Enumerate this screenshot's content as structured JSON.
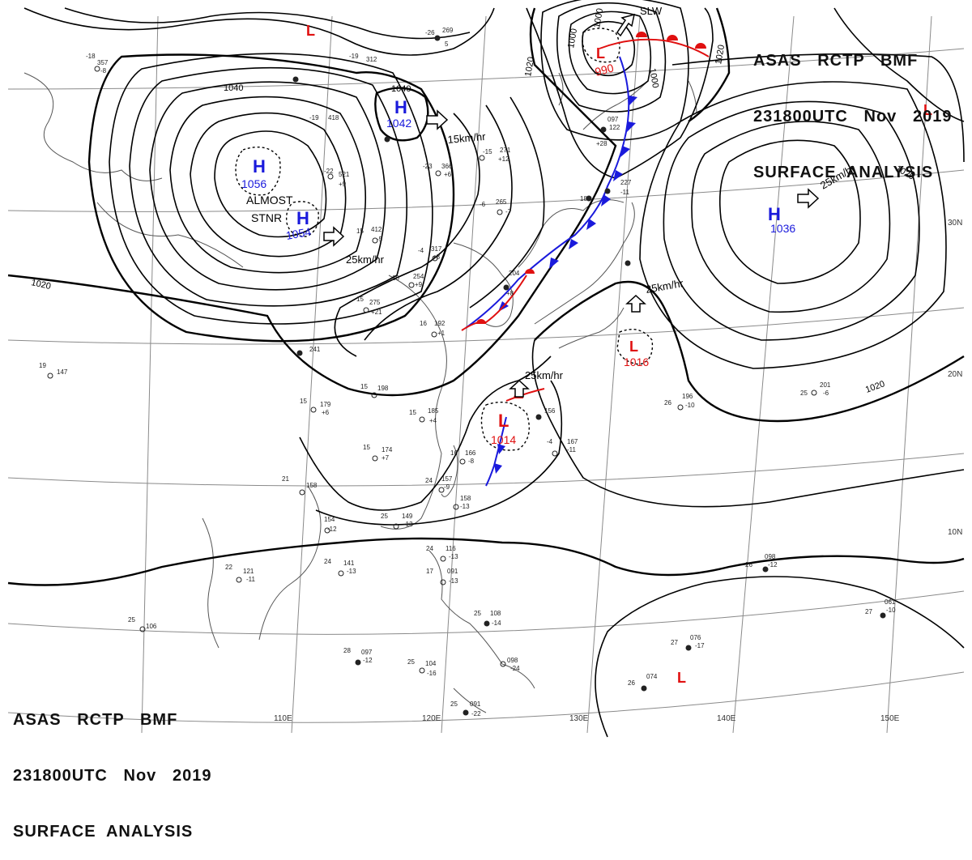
{
  "header_top": [
    "ASAS   RCTP   BMF",
    "231800UTC   Nov   2019",
    "SURFACE  ANALYSIS"
  ],
  "header_bottom": [
    "ASAS   RCTP   BMF",
    "231800UTC   Nov   2019",
    "SURFACE  ANALYSIS"
  ],
  "isobar_labels": [
    "1040",
    "1040",
    "1020",
    "1020",
    "1020",
    "1020",
    "1020",
    "1000",
    "1000",
    "1000"
  ],
  "highs": [
    {
      "letter": "H",
      "value": "1056",
      "note_line1": "ALMOST",
      "note_line2": "STNR"
    },
    {
      "letter": "H",
      "value": "1054"
    },
    {
      "letter": "H",
      "value": "1042"
    },
    {
      "letter": "H",
      "value": "1036"
    }
  ],
  "lows": [
    {
      "letter": "L",
      "value": "990"
    },
    {
      "letter": "L",
      "value": "1016"
    },
    {
      "letter": "L",
      "value": "1014"
    },
    {
      "letter": "L",
      "value": ""
    },
    {
      "letter": "L",
      "value": ""
    },
    {
      "letter": "L",
      "value": ""
    }
  ],
  "motions": [
    "15km/hr",
    "25km/hr",
    "25km/hr",
    "25km/hr",
    "25km/hr",
    "SLW"
  ],
  "lon_labels": [
    "110E",
    "120E",
    "130E",
    "140E",
    "150E"
  ],
  "lat_labels": [
    "30N",
    "20N",
    "10N"
  ],
  "stations": [
    {
      "t": "-18",
      "p": "357",
      "d": "-8"
    },
    {
      "t": "-26",
      "p": "269",
      "d": "5"
    },
    {
      "t": "-19",
      "p": "312",
      "d": ""
    },
    {
      "t": "-19",
      "p": "418",
      "d": ""
    },
    {
      "t": "-22",
      "p": "521",
      "d": "+9"
    },
    {
      "t": "-23",
      "p": "366",
      "d": "+6"
    },
    {
      "t": "-15",
      "p": "271",
      "d": "+12"
    },
    {
      "t": "-6",
      "p": "265",
      "d": "-7"
    },
    {
      "t": "-4",
      "p": "317",
      "d": "+8"
    },
    {
      "t": "15",
      "p": "412",
      "d": "-5"
    },
    {
      "t": "10",
      "p": "254",
      "d": "+9"
    },
    {
      "t": "16",
      "p": "192",
      "d": "+1"
    },
    {
      "t": "15",
      "p": "275",
      "d": "+21"
    },
    {
      "t": "15",
      "p": "179",
      "d": "+6"
    },
    {
      "t": "15",
      "p": "198",
      "d": ""
    },
    {
      "t": "15",
      "p": "185",
      "d": "+4"
    },
    {
      "t": "15",
      "p": "174",
      "d": "+7"
    },
    {
      "t": "21",
      "p": "158",
      "d": ""
    },
    {
      "t": "16",
      "p": "166",
      "d": "-8"
    },
    {
      "t": "24",
      "p": "157",
      "d": "-9"
    },
    {
      "t": "",
      "p": "158",
      "d": "-13"
    },
    {
      "t": "25",
      "p": "149",
      "d": "-13"
    },
    {
      "t": "",
      "p": "154",
      "d": "-12"
    },
    {
      "t": "22",
      "p": "121",
      "d": "-11"
    },
    {
      "t": "24",
      "p": "141",
      "d": "-13"
    },
    {
      "t": "24",
      "p": "116",
      "d": "-13"
    },
    {
      "t": "17",
      "p": "091",
      "d": "-13"
    },
    {
      "t": "25",
      "p": "108",
      "d": "-14"
    },
    {
      "t": "28",
      "p": "097",
      "d": "-12"
    },
    {
      "t": "25",
      "p": "104",
      "d": "-16"
    },
    {
      "t": "25",
      "p": "091",
      "d": "-22"
    },
    {
      "t": "",
      "p": "098",
      "d": "-24"
    },
    {
      "t": "26",
      "p": "196",
      "d": "-10"
    },
    {
      "t": "25",
      "p": "201",
      "d": "-6"
    },
    {
      "t": "26",
      "p": "098",
      "d": "-12"
    },
    {
      "t": "27",
      "p": "061",
      "d": "-10"
    },
    {
      "t": "27",
      "p": "076",
      "d": "-17"
    },
    {
      "t": "26",
      "p": "074",
      "d": ""
    },
    {
      "t": "25",
      "p": "106",
      "d": ""
    },
    {
      "t": "19",
      "p": "147",
      "d": ""
    },
    {
      "t": "-4",
      "p": "167",
      "d": "-11"
    },
    {
      "t": "",
      "p": "156",
      "d": ""
    },
    {
      "t": "",
      "p": "097",
      "d": "+28"
    },
    {
      "t": "",
      "p": "122",
      "d": ""
    },
    {
      "t": "",
      "p": "185",
      "d": ""
    },
    {
      "t": "",
      "p": "204",
      "d": "+8"
    },
    {
      "t": "",
      "p": "227",
      "d": "-11"
    },
    {
      "t": "",
      "p": "241",
      "d": ""
    }
  ],
  "colors": {
    "isobar": "#000000",
    "high_text": "#1a1adc",
    "low_text": "#e01010",
    "cold_front": "#1a1adc",
    "warm_front": "#e01010",
    "grid": "#8a8a8a"
  }
}
